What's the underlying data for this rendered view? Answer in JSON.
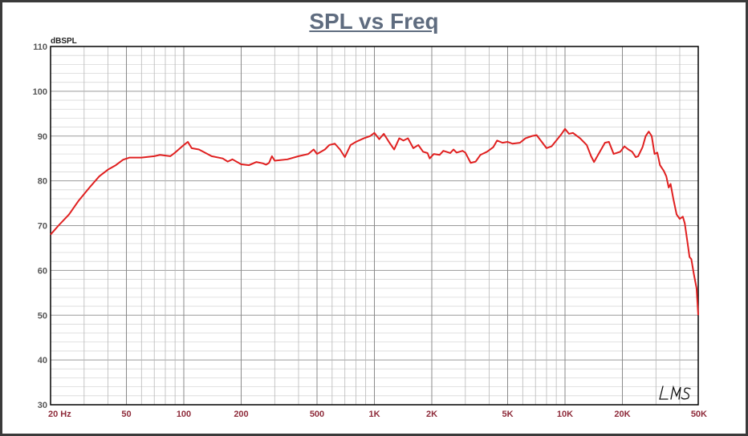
{
  "chart_data": {
    "type": "line",
    "title": "SPL vs Freq",
    "ylabel": "dBSPL",
    "xlabel": "",
    "x_scale": "log",
    "xlim": [
      20,
      50000
    ],
    "ylim": [
      30,
      110
    ],
    "grid": true,
    "y_ticks": [
      {
        "value": 30,
        "label": "30"
      },
      {
        "value": 40,
        "label": "40"
      },
      {
        "value": 50,
        "label": "50"
      },
      {
        "value": 60,
        "label": "60"
      },
      {
        "value": 70,
        "label": "70"
      },
      {
        "value": 80,
        "label": "80"
      },
      {
        "value": 90,
        "label": "90"
      },
      {
        "value": 100,
        "label": "100"
      },
      {
        "value": 110,
        "label": "110"
      }
    ],
    "x_ticks": [
      {
        "value": 20,
        "label": "20  Hz"
      },
      {
        "value": 50,
        "label": "50"
      },
      {
        "value": 100,
        "label": "100"
      },
      {
        "value": 200,
        "label": "200"
      },
      {
        "value": 500,
        "label": "500"
      },
      {
        "value": 1000,
        "label": "1K"
      },
      {
        "value": 2000,
        "label": "2K"
      },
      {
        "value": 5000,
        "label": "5K"
      },
      {
        "value": 10000,
        "label": "10K"
      },
      {
        "value": 20000,
        "label": "20K"
      },
      {
        "value": 50000,
        "label": "50K"
      }
    ],
    "series": [
      {
        "color": "#e02020",
        "points": [
          [
            20,
            68
          ],
          [
            22,
            70
          ],
          [
            25,
            72.5
          ],
          [
            28,
            75.5
          ],
          [
            32,
            78.5
          ],
          [
            36,
            81
          ],
          [
            40,
            82.5
          ],
          [
            44,
            83.5
          ],
          [
            48,
            84.7
          ],
          [
            52,
            85.2
          ],
          [
            60,
            85.2
          ],
          [
            70,
            85.5
          ],
          [
            75,
            85.8
          ],
          [
            85,
            85.5
          ],
          [
            90,
            86.3
          ],
          [
            100,
            88
          ],
          [
            105,
            88.7
          ],
          [
            110,
            87.3
          ],
          [
            120,
            87
          ],
          [
            140,
            85.5
          ],
          [
            160,
            85
          ],
          [
            170,
            84.3
          ],
          [
            180,
            84.8
          ],
          [
            200,
            83.7
          ],
          [
            220,
            83.5
          ],
          [
            240,
            84.2
          ],
          [
            260,
            83.9
          ],
          [
            270,
            83.6
          ],
          [
            280,
            84
          ],
          [
            290,
            85.5
          ],
          [
            300,
            84.5
          ],
          [
            350,
            84.8
          ],
          [
            400,
            85.5
          ],
          [
            450,
            86
          ],
          [
            480,
            87
          ],
          [
            500,
            86
          ],
          [
            550,
            87
          ],
          [
            580,
            88
          ],
          [
            620,
            88.3
          ],
          [
            660,
            87
          ],
          [
            700,
            85.3
          ],
          [
            750,
            88
          ],
          [
            800,
            88.7
          ],
          [
            880,
            89.5
          ],
          [
            950,
            90
          ],
          [
            1000,
            90.7
          ],
          [
            1060,
            89.3
          ],
          [
            1120,
            90.5
          ],
          [
            1200,
            88.5
          ],
          [
            1270,
            87
          ],
          [
            1350,
            89.5
          ],
          [
            1420,
            89
          ],
          [
            1500,
            89.5
          ],
          [
            1600,
            87.3
          ],
          [
            1700,
            88
          ],
          [
            1800,
            86.5
          ],
          [
            1900,
            86.2
          ],
          [
            1950,
            85
          ],
          [
            2050,
            86
          ],
          [
            2200,
            85.8
          ],
          [
            2300,
            86.7
          ],
          [
            2500,
            86.2
          ],
          [
            2600,
            87
          ],
          [
            2700,
            86.3
          ],
          [
            2900,
            86.7
          ],
          [
            3000,
            86.3
          ],
          [
            3200,
            84
          ],
          [
            3400,
            84.3
          ],
          [
            3600,
            85.8
          ],
          [
            3900,
            86.5
          ],
          [
            4200,
            87.5
          ],
          [
            4400,
            89
          ],
          [
            4700,
            88.5
          ],
          [
            5000,
            88.7
          ],
          [
            5300,
            88.3
          ],
          [
            5800,
            88.5
          ],
          [
            6200,
            89.5
          ],
          [
            6700,
            90
          ],
          [
            7100,
            90.2
          ],
          [
            7400,
            89.2
          ],
          [
            8000,
            87.3
          ],
          [
            8500,
            87.7
          ],
          [
            9000,
            89
          ],
          [
            9600,
            90.5
          ],
          [
            10000,
            91.6
          ],
          [
            10500,
            90.5
          ],
          [
            11000,
            90.7
          ],
          [
            12000,
            89.5
          ],
          [
            13000,
            88
          ],
          [
            13700,
            85.5
          ],
          [
            14200,
            84.2
          ],
          [
            15000,
            86
          ],
          [
            16200,
            88.5
          ],
          [
            17000,
            88.7
          ],
          [
            18000,
            86
          ],
          [
            19500,
            86.5
          ],
          [
            20500,
            87.7
          ],
          [
            21500,
            87
          ],
          [
            22500,
            86.5
          ],
          [
            23500,
            85.3
          ],
          [
            24200,
            85.5
          ],
          [
            25500,
            87.5
          ],
          [
            26500,
            90
          ],
          [
            27500,
            91
          ],
          [
            28500,
            90
          ],
          [
            29500,
            86
          ],
          [
            30500,
            86.3
          ],
          [
            31500,
            83.5
          ],
          [
            33000,
            82.2
          ],
          [
            34000,
            81
          ],
          [
            35000,
            78.5
          ],
          [
            35800,
            79.3
          ],
          [
            37000,
            76
          ],
          [
            38500,
            72.5
          ],
          [
            40000,
            71.5
          ],
          [
            41500,
            72
          ],
          [
            42500,
            70.5
          ],
          [
            44000,
            66
          ],
          [
            45000,
            63
          ],
          [
            46000,
            62.5
          ],
          [
            47500,
            59
          ],
          [
            49000,
            56
          ],
          [
            50000,
            50
          ]
        ]
      }
    ]
  },
  "watermark": "LMS"
}
